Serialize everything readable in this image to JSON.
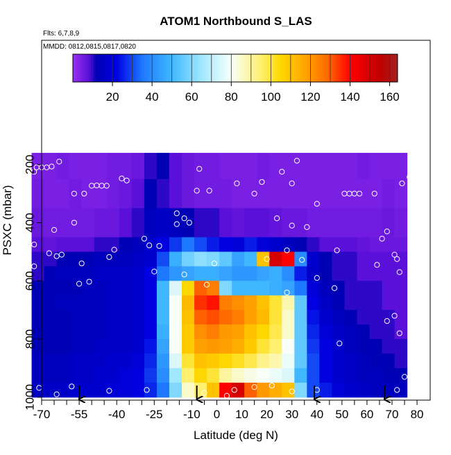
{
  "chart_data": {
    "type": "heatmap",
    "title": "ATOM1 Northbound S_LAS",
    "subtitle": "Flts: 6,7,8,9",
    "annotation": "MMDD: 0812,0815,0817,0820",
    "x_label": "Latitude (deg N)",
    "y_label": "PSXC (mbar)",
    "xlim": [
      -70,
      85.25
    ],
    "ylim": [
      1010,
      -227
    ],
    "xticks": [
      -70,
      -55,
      -40,
      -25,
      -10,
      0,
      10,
      20,
      30,
      40,
      50,
      60,
      70,
      80
    ],
    "xminor": [
      -65,
      -60,
      -50,
      -45,
      -35,
      -30,
      -20,
      -15,
      -5,
      5,
      15,
      25,
      35,
      45,
      55,
      65,
      75
    ],
    "yticks": [
      200,
      400,
      600,
      800,
      1000
    ],
    "x_edges": [
      -74,
      -69,
      -64,
      -59,
      -54,
      -49,
      -44,
      -39,
      -34,
      -29,
      -24,
      -19,
      -14,
      -9,
      -4,
      1,
      6,
      11,
      16,
      21,
      26,
      31,
      36,
      41,
      46,
      51,
      56,
      61,
      66,
      71,
      76
    ],
    "y_edges": [
      160,
      250,
      350,
      450,
      500,
      550,
      600,
      650,
      700,
      750,
      800,
      850,
      900,
      950,
      1000
    ],
    "z": [
      [
        4,
        4,
        5,
        4,
        4,
        4,
        5,
        5,
        6,
        10,
        12,
        8,
        6,
        5,
        5,
        4,
        4,
        4,
        5,
        4,
        4,
        4,
        4,
        4,
        4,
        4,
        5,
        4,
        4,
        4
      ],
      [
        5,
        4,
        4,
        5,
        4,
        4,
        5,
        6,
        8,
        12,
        10,
        8,
        6,
        5,
        5,
        5,
        4,
        4,
        4,
        4,
        4,
        4,
        4,
        4,
        4,
        4,
        4,
        4,
        5,
        4
      ],
      [
        6,
        5,
        5,
        5,
        5,
        6,
        6,
        8,
        10,
        14,
        16,
        14,
        12,
        10,
        10,
        8,
        7,
        8,
        8,
        7,
        6,
        6,
        5,
        5,
        5,
        5,
        5,
        5,
        6,
        5
      ],
      [
        8,
        7,
        8,
        8,
        8,
        10,
        10,
        12,
        14,
        18,
        22,
        28,
        35,
        30,
        25,
        22,
        20,
        25,
        20,
        18,
        15,
        12,
        10,
        8,
        8,
        8,
        7,
        6,
        6,
        6
      ],
      [
        10,
        10,
        12,
        12,
        12,
        14,
        14,
        14,
        16,
        18,
        30,
        48,
        58,
        62,
        60,
        55,
        45,
        50,
        110,
        150,
        140,
        40,
        18,
        12,
        10,
        10,
        8,
        8,
        8,
        8
      ],
      [
        10,
        12,
        14,
        14,
        14,
        16,
        16,
        16,
        18,
        22,
        35,
        42,
        45,
        48,
        48,
        45,
        42,
        42,
        45,
        48,
        40,
        25,
        16,
        12,
        10,
        10,
        8,
        8,
        8,
        8
      ],
      [
        12,
        12,
        12,
        12,
        14,
        14,
        16,
        16,
        18,
        22,
        50,
        75,
        105,
        130,
        125,
        60,
        50,
        50,
        50,
        48,
        45,
        35,
        20,
        14,
        12,
        10,
        10,
        10,
        8,
        8
      ],
      [
        12,
        12,
        14,
        14,
        14,
        14,
        16,
        16,
        18,
        22,
        50,
        80,
        112,
        135,
        138,
        125,
        122,
        118,
        110,
        100,
        88,
        55,
        22,
        16,
        12,
        10,
        10,
        10,
        8,
        8
      ],
      [
        12,
        12,
        12,
        14,
        14,
        14,
        16,
        16,
        18,
        22,
        50,
        80,
        110,
        130,
        132,
        128,
        125,
        118,
        112,
        100,
        85,
        55,
        24,
        18,
        14,
        12,
        10,
        10,
        10,
        8
      ],
      [
        12,
        12,
        12,
        14,
        14,
        14,
        16,
        16,
        18,
        22,
        48,
        80,
        108,
        122,
        125,
        120,
        118,
        110,
        105,
        98,
        85,
        55,
        26,
        20,
        16,
        14,
        12,
        10,
        10,
        8
      ],
      [
        12,
        12,
        12,
        14,
        14,
        16,
        16,
        16,
        18,
        24,
        45,
        80,
        108,
        118,
        120,
        118,
        115,
        108,
        100,
        95,
        80,
        55,
        28,
        22,
        18,
        14,
        12,
        12,
        10,
        10
      ],
      [
        14,
        14,
        14,
        16,
        16,
        16,
        18,
        18,
        20,
        26,
        42,
        75,
        100,
        110,
        108,
        105,
        102,
        98,
        92,
        88,
        78,
        55,
        30,
        22,
        18,
        16,
        14,
        12,
        12,
        10
      ],
      [
        14,
        14,
        14,
        16,
        16,
        18,
        18,
        20,
        22,
        28,
        40,
        65,
        95,
        105,
        100,
        90,
        85,
        82,
        80,
        78,
        75,
        50,
        30,
        22,
        18,
        16,
        14,
        14,
        12,
        12
      ],
      [
        16,
        16,
        16,
        18,
        18,
        18,
        20,
        20,
        22,
        26,
        35,
        60,
        85,
        95,
        110,
        140,
        150,
        130,
        120,
        115,
        110,
        60,
        30,
        25,
        20,
        18,
        16,
        14,
        14,
        14
      ]
    ],
    "colorscale": [
      [
        0,
        "#9a30f0"
      ],
      [
        8,
        "#5a10d8"
      ],
      [
        12,
        "#0000b4"
      ],
      [
        22,
        "#0000e0"
      ],
      [
        35,
        "#1e78ff"
      ],
      [
        50,
        "#40b8ff"
      ],
      [
        65,
        "#a0e8ff"
      ],
      [
        80,
        "#f8fff8"
      ],
      [
        95,
        "#fff070"
      ],
      [
        105,
        "#ffd700"
      ],
      [
        120,
        "#ff9900"
      ],
      [
        130,
        "#ff6000"
      ],
      [
        140,
        "#ff0000"
      ],
      [
        155,
        "#c00000"
      ],
      [
        164,
        "#a02020"
      ]
    ],
    "clim": [
      0,
      164
    ],
    "cticks": [
      20,
      40,
      60,
      80,
      100,
      120,
      140,
      160
    ],
    "cdividers": [
      10,
      20,
      30,
      40,
      50,
      60,
      70,
      80,
      90,
      100,
      110,
      120,
      130,
      140,
      150,
      160
    ],
    "points": {
      "x": [
        -73,
        -72,
        -70,
        -68,
        -66,
        -63,
        -73,
        -73,
        -67,
        -64,
        -62,
        -65,
        -57,
        -57,
        -53,
        -50,
        -48,
        -46,
        -44,
        -54,
        -55,
        -51,
        -43,
        -41,
        -38,
        -36,
        -29,
        -27,
        -25,
        -23,
        -28,
        -43,
        -58,
        -71,
        -64,
        -13,
        -16,
        -16,
        -11,
        -8,
        -7,
        -3,
        8,
        15,
        18,
        24,
        26,
        30,
        32,
        30,
        36,
        40,
        40,
        47,
        48,
        51,
        53,
        55,
        57,
        63,
        66,
        68,
        71,
        72,
        73,
        68,
        71,
        73,
        74,
        77,
        75,
        80,
        72,
        64,
        40,
        30,
        22,
        15,
        7,
        -5,
        4,
        28,
        28,
        27,
        20,
        -1,
        49,
        34,
        -13,
        -4
      ],
      "y": [
        225,
        210,
        210,
        210,
        207,
        190,
        475,
        550,
        505,
        515,
        510,
        425,
        400,
        300,
        300,
        273,
        272,
        273,
        273,
        540,
        610,
        603,
        518,
        493,
        248,
        255,
        455,
        478,
        568,
        480,
        975,
        978,
        963,
        968,
        990,
        385,
        368,
        405,
        400,
        290,
        215,
        290,
        265,
        300,
        260,
        385,
        225,
        265,
        187,
        410,
        415,
        335,
        590,
        625,
        495,
        300,
        300,
        300,
        300,
        300,
        455,
        430,
        510,
        525,
        570,
        738,
        720,
        780,
        265,
        243,
        930,
        453,
        975,
        545,
        975,
        980,
        960,
        965,
        975,
        985,
        995,
        640,
        495,
        812,
        525,
        540,
        815,
        528,
        578,
        613
      ]
    },
    "arrows": [
      -55,
      -8,
      39,
      67
    ]
  }
}
